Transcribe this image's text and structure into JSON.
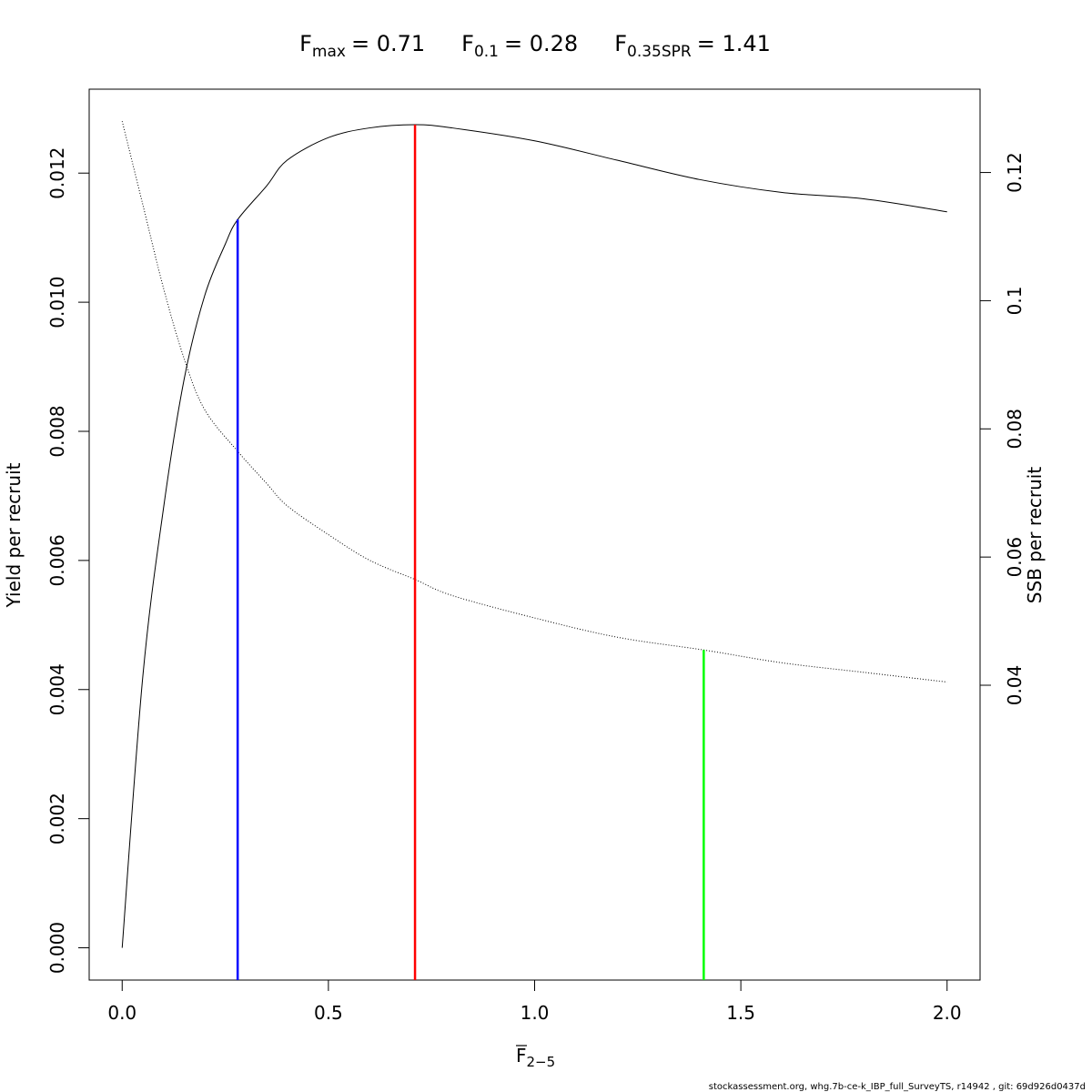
{
  "title": {
    "fmax": {
      "base": "F",
      "sub": "max",
      "value": "= 0.71"
    },
    "f01": {
      "base": "F",
      "sub": "0.1",
      "value": "= 0.28"
    },
    "fspr": {
      "base": "F",
      "sub": "0.35SPR",
      "value": "= 1.41"
    }
  },
  "footer": "stockassessment.org, whg.7b-ce-k_IBP_full_SurveyTS, r14942 , git: 69d926d0437d",
  "chart_data": {
    "type": "line",
    "xlabel": {
      "base": "F",
      "sub": "2−5",
      "overbar": true
    },
    "ylabel": "Yield per recruit",
    "y2label": "SSB per recruit",
    "xlim": [
      -0.08,
      2.08
    ],
    "ylim": [
      -0.0005,
      0.0133
    ],
    "y2lim": [
      -0.006,
      0.133
    ],
    "xticks": [
      0.0,
      0.5,
      1.0,
      1.5,
      2.0
    ],
    "xtick_labels": [
      "0.0",
      "0.5",
      "1.0",
      "1.5",
      "2.0"
    ],
    "yticks": [
      0.0,
      0.002,
      0.004,
      0.006,
      0.008,
      0.01,
      0.012
    ],
    "ytick_labels": [
      "0.000",
      "0.002",
      "0.004",
      "0.006",
      "0.008",
      "0.010",
      "0.012"
    ],
    "y2ticks": [
      0.04,
      0.06,
      0.08,
      0.1,
      0.12
    ],
    "y2tick_labels": [
      "0.04",
      "0.06",
      "0.08",
      "0.1",
      "0.12"
    ],
    "grid": false,
    "legend": "none",
    "series": [
      {
        "axis": "left",
        "style": "solid",
        "color": "#000000",
        "x": [
          0.0,
          0.05,
          0.1,
          0.15,
          0.2,
          0.25,
          0.28,
          0.35,
          0.4,
          0.5,
          0.6,
          0.71,
          0.8,
          1.0,
          1.2,
          1.4,
          1.6,
          1.8,
          2.0
        ],
        "y": [
          0.0,
          0.0042,
          0.0068,
          0.0088,
          0.0101,
          0.0109,
          0.01128,
          0.0118,
          0.0122,
          0.01255,
          0.0127,
          0.01275,
          0.0127,
          0.0125,
          0.0122,
          0.0119,
          0.0117,
          0.0116,
          0.0114
        ]
      },
      {
        "axis": "right",
        "style": "dotted",
        "color": "#000000",
        "x": [
          0.0,
          0.05,
          0.1,
          0.15,
          0.2,
          0.28,
          0.35,
          0.4,
          0.5,
          0.6,
          0.71,
          0.8,
          1.0,
          1.2,
          1.41,
          1.6,
          1.8,
          2.0
        ],
        "y": [
          0.128,
          0.115,
          0.102,
          0.091,
          0.083,
          0.0765,
          0.0715,
          0.068,
          0.0635,
          0.0595,
          0.0565,
          0.054,
          0.0505,
          0.0475,
          0.0455,
          0.0435,
          0.042,
          0.0405
        ]
      }
    ],
    "reference_lines": [
      {
        "name": "F0.1",
        "x": 0.28,
        "y_top": 0.01128,
        "axis": "left",
        "color": "#0000ff"
      },
      {
        "name": "Fmax",
        "x": 0.71,
        "y_top": 0.01275,
        "axis": "left",
        "color": "#ff0000"
      },
      {
        "name": "F0.35SPR",
        "x": 1.41,
        "y_top": 0.0455,
        "axis": "right",
        "color": "#00ff00"
      }
    ]
  }
}
